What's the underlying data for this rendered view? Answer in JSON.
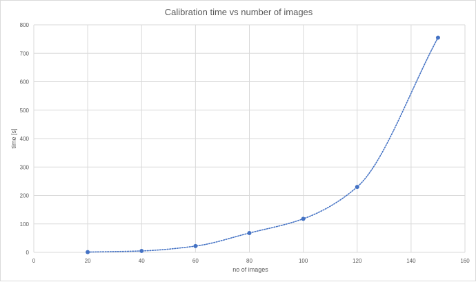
{
  "chart_data": {
    "type": "scatter",
    "title": "Calibration time vs number of images",
    "xlabel": "no of images",
    "ylabel": "time [s]",
    "xlim": [
      0,
      160
    ],
    "ylim": [
      0,
      800
    ],
    "x_ticks": [
      0,
      20,
      40,
      60,
      80,
      100,
      120,
      140,
      160
    ],
    "y_ticks": [
      0,
      100,
      200,
      300,
      400,
      500,
      600,
      700,
      800
    ],
    "grid": true,
    "legend": "none",
    "series": [
      {
        "points": [
          {
            "x": 20,
            "y": 1
          },
          {
            "x": 40,
            "y": 5
          },
          {
            "x": 60,
            "y": 22
          },
          {
            "x": 80,
            "y": 68
          },
          {
            "x": 100,
            "y": 118
          },
          {
            "x": 120,
            "y": 230
          },
          {
            "x": 150,
            "y": 755
          }
        ],
        "color": "#4472c4",
        "trendline": "dotted"
      }
    ]
  }
}
